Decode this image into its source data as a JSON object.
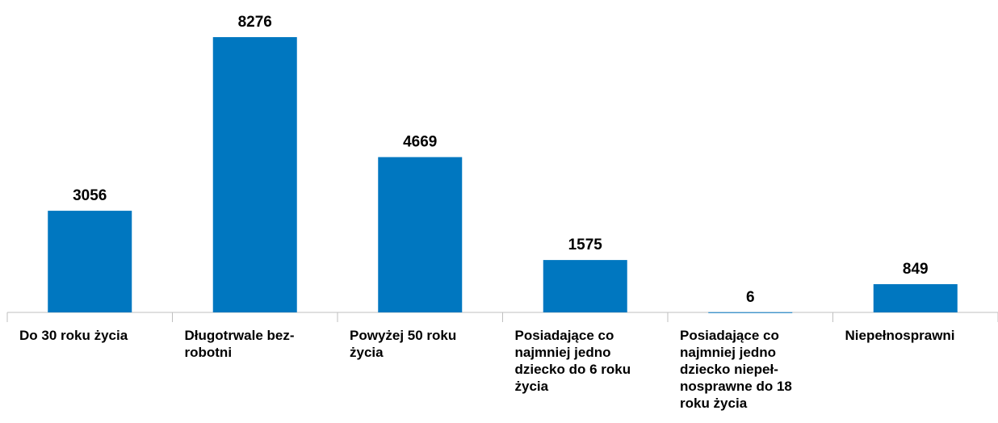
{
  "chart_data": {
    "type": "bar",
    "categories": [
      "Do 30 roku życia",
      "Długotrwale bez-\nrobotni",
      "Powyżej 50 roku\nżycia",
      "Posiadające co\nnajmniej jedno\ndziecko do 6 roku\nżycia",
      "Posiadające co\nnajmniej jedno\ndziecko niepeł-\nnosprawne do 18\nroku życia",
      "Niepełnosprawni"
    ],
    "values": [
      3056,
      8276,
      4669,
      1575,
      6,
      849
    ],
    "color": "#0077c0"
  }
}
